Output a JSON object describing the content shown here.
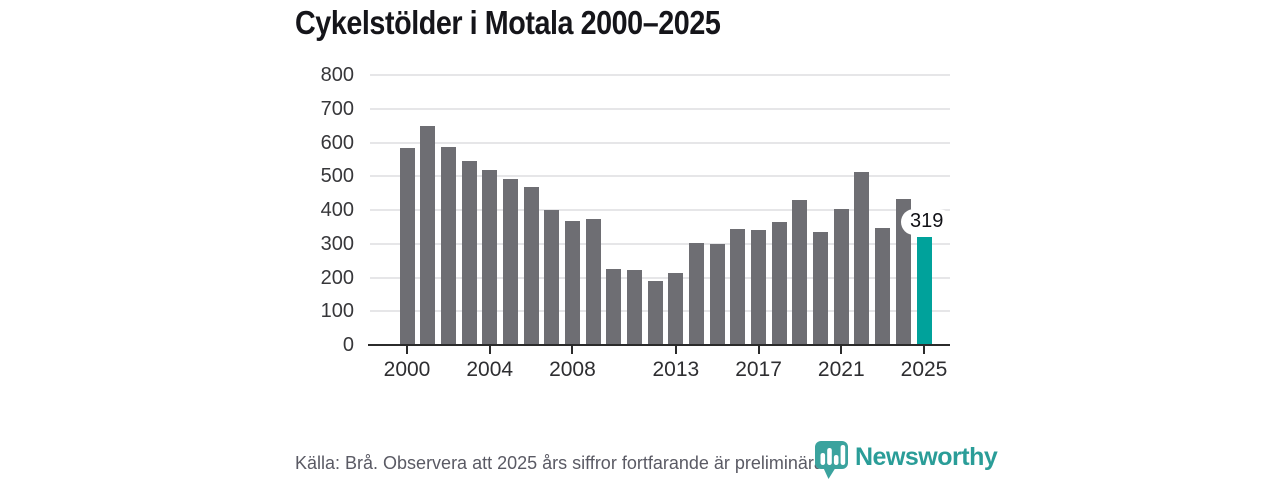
{
  "title": "Cykelstölder i Motala 2000–2025",
  "footer": {
    "source_note": "Källa: Brå. Observera att 2025 års siffror fortfarande är preliminära."
  },
  "branding": {
    "logo_text": "Newsworthy",
    "logo_icon": "newsworthy-barchart-pin-icon"
  },
  "colors": {
    "bar": "#6e6e73",
    "highlight": "#00a29b",
    "grid": "#e6e6e8",
    "axis": "#2b2b2b",
    "logo_teal": "#2a9d98",
    "icon_teal": "#3ba39e"
  },
  "chart_data": {
    "type": "bar",
    "title": "Cykelstölder i Motala 2000–2025",
    "x": [
      2000,
      2001,
      2002,
      2003,
      2004,
      2005,
      2006,
      2007,
      2008,
      2009,
      2010,
      2011,
      2012,
      2013,
      2014,
      2015,
      2016,
      2017,
      2018,
      2019,
      2020,
      2021,
      2022,
      2023,
      2024,
      2025
    ],
    "values": [
      583,
      650,
      587,
      545,
      518,
      493,
      468,
      401,
      368,
      374,
      225,
      222,
      189,
      213,
      302,
      298,
      343,
      340,
      364,
      431,
      334,
      404,
      512,
      347,
      432,
      319
    ],
    "highlight_year": 2025,
    "annotation": {
      "year": 2025,
      "text": "319"
    },
    "ylim": [
      0,
      800
    ],
    "ytick_step": 100,
    "xticks": [
      2000,
      2004,
      2008,
      2013,
      2017,
      2021,
      2025
    ],
    "grid": "horizontal",
    "legend": "none",
    "xlabel": "",
    "ylabel": ""
  }
}
